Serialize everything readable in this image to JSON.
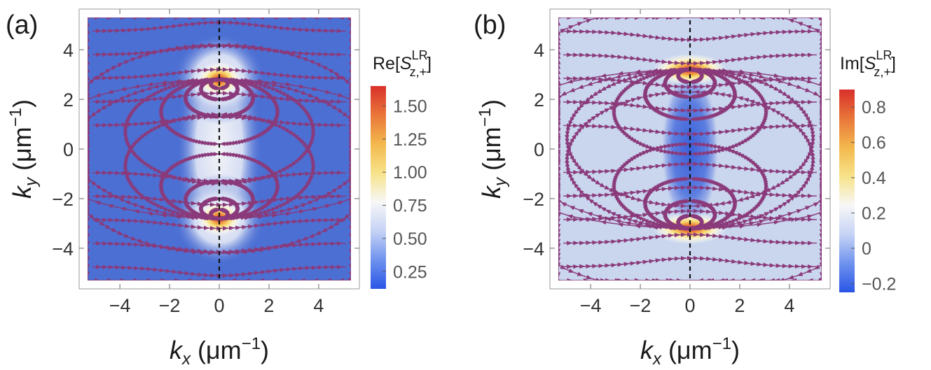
{
  "chart_data": [
    {
      "type": "heatmap",
      "panel_label": "(a)",
      "description_quantity": "Re[S_{z,+}^{LR}]",
      "xlabel": {
        "main": "k",
        "sub": "x",
        "unit": " (μm",
        "sup": "−1",
        "close": ")"
      },
      "ylabel": {
        "main": "k",
        "sub": "y",
        "unit": " (μm",
        "sup": "−1",
        "close": ")"
      },
      "xlim": [
        -5.3,
        5.3
      ],
      "ylim": [
        -5.3,
        5.3
      ],
      "xticks": [
        -4,
        -2,
        0,
        2,
        4
      ],
      "yticks": [
        -4,
        -2,
        0,
        2,
        4
      ],
      "xtick_labels": [
        "−4",
        "−2",
        "0",
        "2",
        "4"
      ],
      "ytick_labels": [
        "−4",
        "−2",
        "0",
        "2",
        "4"
      ],
      "grid": false,
      "dashed_line": "kx = 0",
      "hot_spots": [
        {
          "kx": 0,
          "ky": 2.8,
          "peak": 1.6
        },
        {
          "kx": 0,
          "ky": -2.8,
          "peak": 1.6
        }
      ],
      "background_value": 0.2,
      "colorbar": {
        "title": {
          "prefix": "Re[",
          "symbol": "S",
          "sub": "z,+",
          "sup": "LR",
          "suffix": "]"
        },
        "range": [
          0.12,
          1.65
        ],
        "ticks": [
          0.25,
          0.5,
          0.75,
          1.0,
          1.25,
          1.5
        ],
        "tick_labels": [
          "0.25",
          "0.50",
          "0.75",
          "1.00",
          "1.25",
          "1.50"
        ]
      }
    },
    {
      "type": "heatmap",
      "panel_label": "(b)",
      "description_quantity": "Im[S_{z,+}^{LR}]",
      "xlabel": {
        "main": "k",
        "sub": "x",
        "unit": " (μm",
        "sup": "−1",
        "close": ")"
      },
      "ylabel": {
        "main": "k",
        "sub": "y",
        "unit": " (μm",
        "sup": "−1",
        "close": ")"
      },
      "xlim": [
        -5.3,
        5.3
      ],
      "ylim": [
        -5.3,
        5.3
      ],
      "xticks": [
        -4,
        -2,
        0,
        2,
        4
      ],
      "yticks": [
        -4,
        -2,
        0,
        2,
        4
      ],
      "xtick_labels": [
        "−4",
        "−2",
        "0",
        "2",
        "4"
      ],
      "ytick_labels": [
        "−4",
        "−2",
        "0",
        "2",
        "4"
      ],
      "grid": false,
      "dashed_line": "kx = 0",
      "hot_spots": [
        {
          "kx": 0,
          "ky": 3.2,
          "peak": 0.9
        },
        {
          "kx": 0,
          "ky": -3.2,
          "peak": 0.9
        }
      ],
      "cold_region": {
        "kx": 0,
        "ky": 0,
        "value": -0.1
      },
      "background_value": 0.05,
      "colorbar": {
        "title": {
          "prefix": "Im[",
          "symbol": "S",
          "sub": "z,+",
          "sup": "LR",
          "suffix": "]"
        },
        "range": [
          -0.25,
          0.9
        ],
        "ticks": [
          -0.2,
          0,
          0.2,
          0.4,
          0.6,
          0.8
        ],
        "tick_labels": [
          "−0.2",
          "0",
          "0.2",
          "0.4",
          "0.6",
          "0.8"
        ]
      }
    }
  ],
  "colors": {
    "stream": "#8a3a7a",
    "dashed": "#111111",
    "frame": "#9a9a9a",
    "colormap": [
      "#2a55e6",
      "#6f93ee",
      "#c6d3f5",
      "#f7f7f7",
      "#f7e38a",
      "#f3b84d",
      "#e9763a",
      "#d9302a"
    ]
  }
}
